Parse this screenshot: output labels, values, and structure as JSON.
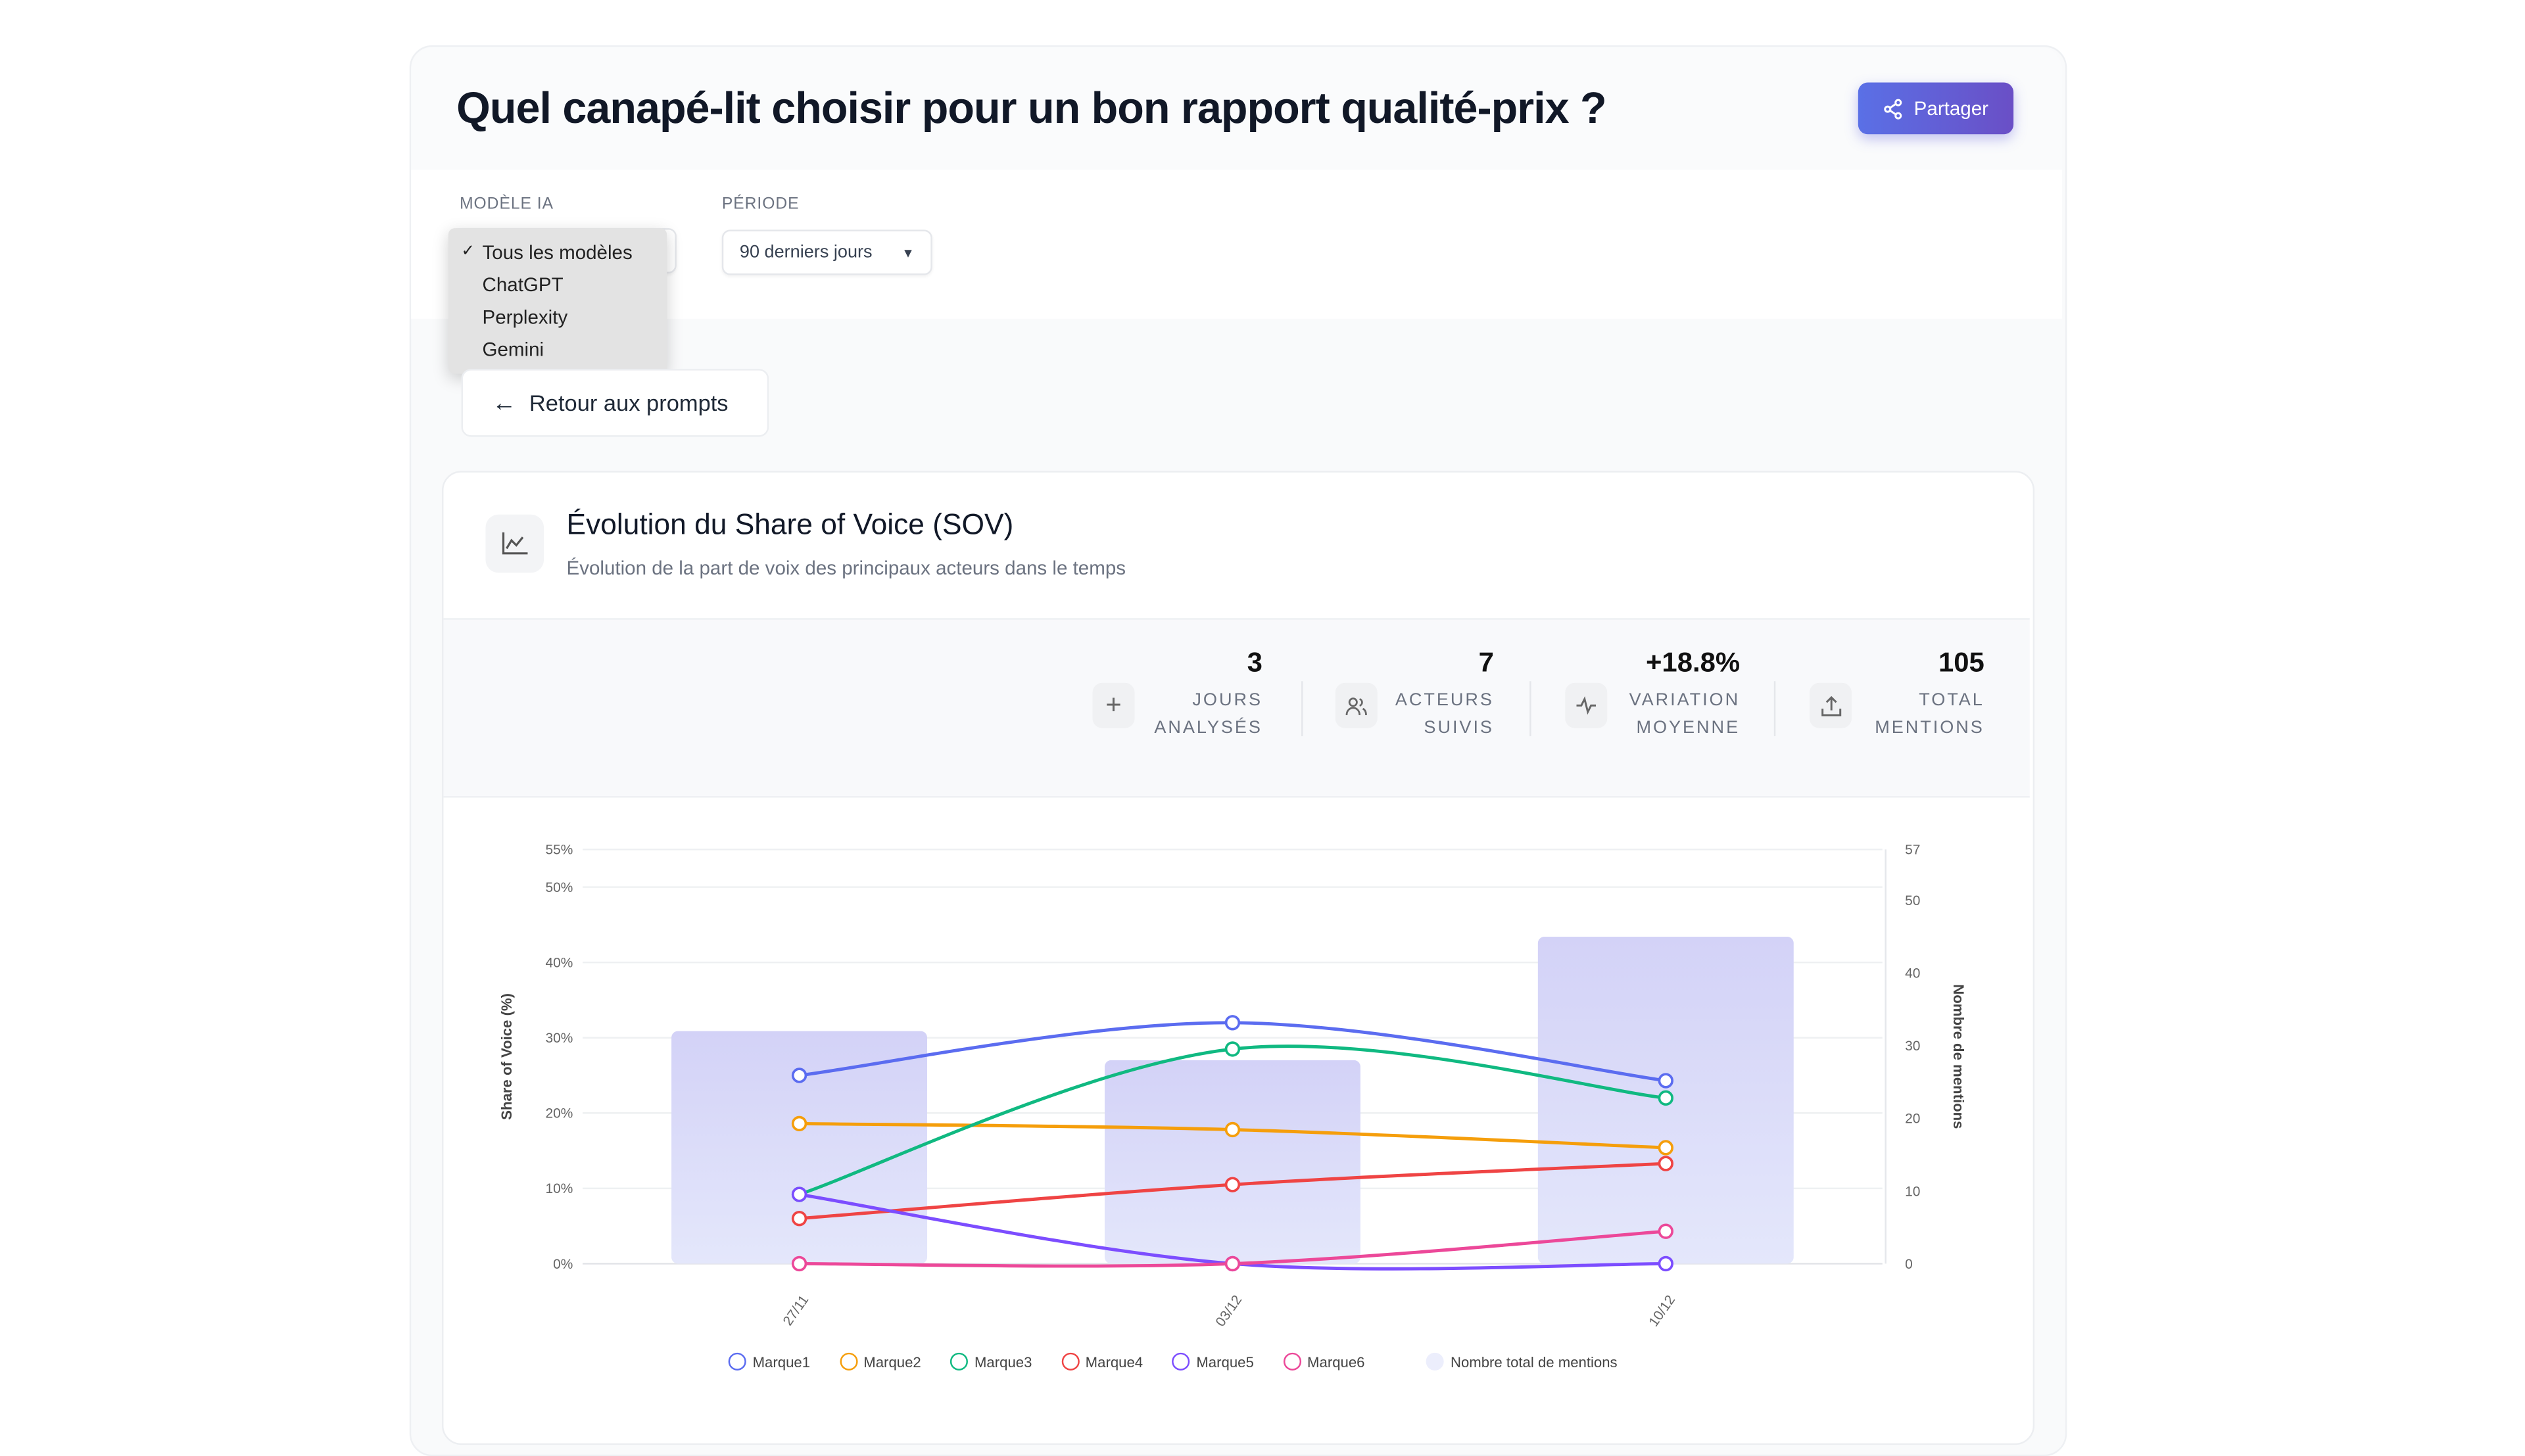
{
  "header": {
    "title": "Quel canapé-lit choisir pour un bon rapport qualité-prix ?",
    "share_label": "Partager",
    "share_icon": "share-icon"
  },
  "filters": {
    "model_label": "MODÈLE IA",
    "model_selected": "Tous les modèles",
    "model_options": [
      "Tous les modèles",
      "ChatGPT",
      "Perplexity",
      "Gemini"
    ],
    "period_label": "PÉRIODE",
    "period_value": "90 derniers jours"
  },
  "back_label": "Retour aux prompts",
  "card": {
    "title": "Évolution du Share of Voice (SOV)",
    "subtitle": "Évolution de la part de voix des principaux acteurs dans le temps"
  },
  "stats": [
    {
      "value": "3",
      "label1": "JOURS",
      "label2": "ANALYSÉS",
      "icon": "plus-icon"
    },
    {
      "value": "7",
      "label1": "ACTEURS",
      "label2": "SUIVIS",
      "icon": "users-icon"
    },
    {
      "value": "+18.8%",
      "label1": "VARIATION",
      "label2": "MOYENNE",
      "icon": "activity-icon"
    },
    {
      "value": "105",
      "label1": "TOTAL",
      "label2": "MENTIONS",
      "icon": "upload-icon"
    }
  ],
  "chart_data": {
    "type": "line",
    "categories": [
      "27/11",
      "03/12",
      "10/12"
    ],
    "ylabel": "Share of Voice (%)",
    "y2label": "Nombre de mentions",
    "ylim": [
      0,
      55
    ],
    "y2lim": [
      0,
      57
    ],
    "yticks": [
      "0%",
      "10%",
      "20%",
      "30%",
      "40%",
      "50%",
      "55%"
    ],
    "y2ticks": [
      "0",
      "10",
      "20",
      "30",
      "40",
      "50",
      "57"
    ],
    "grid": true,
    "legend": "bottom",
    "series": [
      {
        "name": "Marque1",
        "color": "#5b6cf0",
        "values": [
          25,
          32,
          24.3
        ]
      },
      {
        "name": "Marque2",
        "color": "#f59e0b",
        "values": [
          18.6,
          17.8,
          15.4
        ]
      },
      {
        "name": "Marque3",
        "color": "#10b981",
        "values": [
          9.2,
          28.5,
          22
        ]
      },
      {
        "name": "Marque4",
        "color": "#ef4444",
        "values": [
          6,
          10.5,
          13.3
        ]
      },
      {
        "name": "Marque5",
        "color": "#7c4dff",
        "values": [
          9.2,
          0,
          0
        ]
      },
      {
        "name": "Marque6",
        "color": "#ec4899",
        "values": [
          0,
          0,
          4.3
        ]
      }
    ],
    "bars": {
      "name": "Nombre total de mentions",
      "color": "#cfd2f7",
      "values": [
        32,
        28,
        45
      ]
    }
  }
}
